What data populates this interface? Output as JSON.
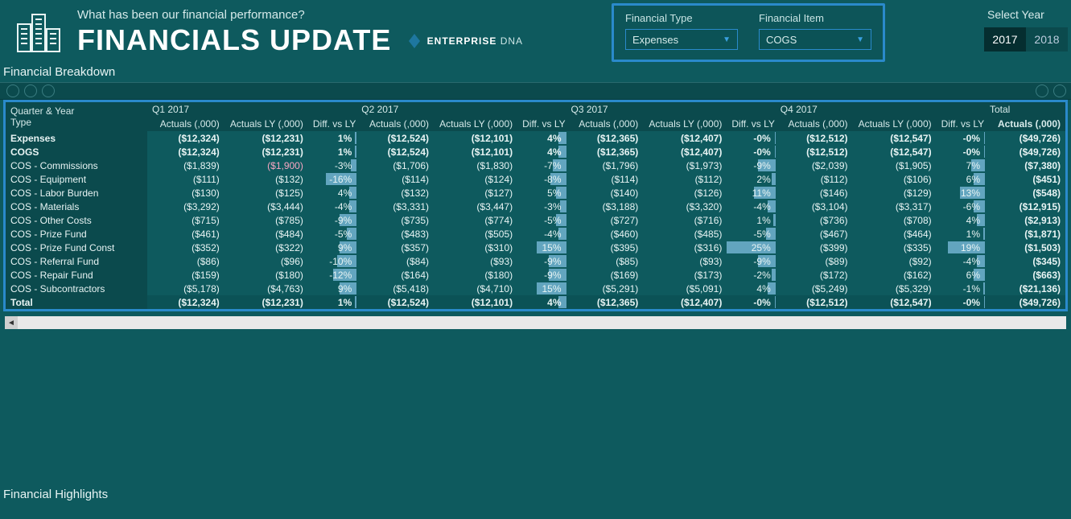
{
  "header": {
    "subtitle": "What has been our financial performance?",
    "title": "FINANCIALS UPDATE",
    "brand_prefix": "ENTERPRISE",
    "brand_suffix": " DNA"
  },
  "slicers": {
    "type_label": "Financial Type",
    "type_value": "Expenses",
    "item_label": "Financial Item",
    "item_value": "COGS"
  },
  "year": {
    "label": "Select Year",
    "y2017": "2017",
    "y2018": "2018",
    "selected": "2017"
  },
  "section_breakdown": "Financial Breakdown",
  "section_highlights": "Financial Highlights",
  "row_header_title1": "Quarter & Year",
  "row_header_title2": "Type",
  "quarters": {
    "q1": "Q1 2017",
    "q2": "Q2 2017",
    "q3": "Q3 2017",
    "q4": "Q4 2017",
    "tot": "Total"
  },
  "col_labels": {
    "act": "Actuals (,000)",
    "ly": "Actuals LY (,000)",
    "diff": "Diff. vs LY"
  },
  "total_label": "Total",
  "diff_bar_color": "#7fbfe0",
  "diff_bar_max_pct": 25,
  "rows": [
    {
      "label": "Expenses",
      "indent": 0,
      "bold": true,
      "q1": {
        "a": "($12,324)",
        "l": "($12,231)",
        "d": "1%",
        "b": 4
      },
      "q2": {
        "a": "($12,524)",
        "l": "($12,101)",
        "d": "4%",
        "b": 16
      },
      "q3": {
        "a": "($12,365)",
        "l": "($12,407)",
        "d": "-0%",
        "b": 2
      },
      "q4": {
        "a": "($12,512)",
        "l": "($12,547)",
        "d": "-0%",
        "b": 2
      },
      "tot": "($49,726)"
    },
    {
      "label": "COGS",
      "indent": 1,
      "bold": true,
      "q1": {
        "a": "($12,324)",
        "l": "($12,231)",
        "d": "1%",
        "b": 4
      },
      "q2": {
        "a": "($12,524)",
        "l": "($12,101)",
        "d": "4%",
        "b": 16
      },
      "q3": {
        "a": "($12,365)",
        "l": "($12,407)",
        "d": "-0%",
        "b": 2
      },
      "q4": {
        "a": "($12,512)",
        "l": "($12,547)",
        "d": "-0%",
        "b": 2
      },
      "tot": "($49,726)"
    },
    {
      "label": "COS - Commissions",
      "indent": 2,
      "q1": {
        "a": "($1,839)",
        "l": "($1,900)",
        "d": "-3%",
        "b": 12,
        "hl": true
      },
      "q2": {
        "a": "($1,706)",
        "l": "($1,830)",
        "d": "-7%",
        "b": 28
      },
      "q3": {
        "a": "($1,796)",
        "l": "($1,973)",
        "d": "-9%",
        "b": 36
      },
      "q4": {
        "a": "($2,039)",
        "l": "($1,905)",
        "d": "7%",
        "b": 28
      },
      "tot": "($7,380)"
    },
    {
      "label": "COS - Equipment",
      "indent": 2,
      "q1": {
        "a": "($111)",
        "l": "($132)",
        "d": "-16%",
        "b": 64
      },
      "q2": {
        "a": "($114)",
        "l": "($124)",
        "d": "-8%",
        "b": 32
      },
      "q3": {
        "a": "($114)",
        "l": "($112)",
        "d": "2%",
        "b": 8
      },
      "q4": {
        "a": "($112)",
        "l": "($106)",
        "d": "6%",
        "b": 24
      },
      "tot": "($451)"
    },
    {
      "label": "COS - Labor Burden",
      "indent": 2,
      "q1": {
        "a": "($130)",
        "l": "($125)",
        "d": "4%",
        "b": 16
      },
      "q2": {
        "a": "($132)",
        "l": "($127)",
        "d": "5%",
        "b": 20
      },
      "q3": {
        "a": "($140)",
        "l": "($126)",
        "d": "11%",
        "b": 44
      },
      "q4": {
        "a": "($146)",
        "l": "($129)",
        "d": "13%",
        "b": 52
      },
      "tot": "($548)"
    },
    {
      "label": "COS - Materials",
      "indent": 2,
      "q1": {
        "a": "($3,292)",
        "l": "($3,444)",
        "d": "-4%",
        "b": 16
      },
      "q2": {
        "a": "($3,331)",
        "l": "($3,447)",
        "d": "-3%",
        "b": 12
      },
      "q3": {
        "a": "($3,188)",
        "l": "($3,320)",
        "d": "-4%",
        "b": 16
      },
      "q4": {
        "a": "($3,104)",
        "l": "($3,317)",
        "d": "-6%",
        "b": 24
      },
      "tot": "($12,915)"
    },
    {
      "label": "COS - Other Costs",
      "indent": 2,
      "q1": {
        "a": "($715)",
        "l": "($785)",
        "d": "-9%",
        "b": 36
      },
      "q2": {
        "a": "($735)",
        "l": "($774)",
        "d": "-5%",
        "b": 20
      },
      "q3": {
        "a": "($727)",
        "l": "($716)",
        "d": "1%",
        "b": 4
      },
      "q4": {
        "a": "($736)",
        "l": "($708)",
        "d": "4%",
        "b": 16
      },
      "tot": "($2,913)"
    },
    {
      "label": "COS - Prize Fund",
      "indent": 2,
      "q1": {
        "a": "($461)",
        "l": "($484)",
        "d": "-5%",
        "b": 20
      },
      "q2": {
        "a": "($483)",
        "l": "($505)",
        "d": "-4%",
        "b": 16
      },
      "q3": {
        "a": "($460)",
        "l": "($485)",
        "d": "-5%",
        "b": 20
      },
      "q4": {
        "a": "($467)",
        "l": "($464)",
        "d": "1%",
        "b": 4
      },
      "tot": "($1,871)"
    },
    {
      "label": "COS - Prize Fund Const",
      "indent": 2,
      "q1": {
        "a": "($352)",
        "l": "($322)",
        "d": "9%",
        "b": 36
      },
      "q2": {
        "a": "($357)",
        "l": "($310)",
        "d": "15%",
        "b": 60
      },
      "q3": {
        "a": "($395)",
        "l": "($316)",
        "d": "25%",
        "b": 100
      },
      "q4": {
        "a": "($399)",
        "l": "($335)",
        "d": "19%",
        "b": 76
      },
      "tot": "($1,503)"
    },
    {
      "label": "COS - Referral Fund",
      "indent": 2,
      "q1": {
        "a": "($86)",
        "l": "($96)",
        "d": "-10%",
        "b": 40
      },
      "q2": {
        "a": "($84)",
        "l": "($93)",
        "d": "-9%",
        "b": 36
      },
      "q3": {
        "a": "($85)",
        "l": "($93)",
        "d": "-9%",
        "b": 36
      },
      "q4": {
        "a": "($89)",
        "l": "($92)",
        "d": "-4%",
        "b": 16
      },
      "tot": "($345)"
    },
    {
      "label": "COS - Repair Fund",
      "indent": 2,
      "q1": {
        "a": "($159)",
        "l": "($180)",
        "d": "-12%",
        "b": 48
      },
      "q2": {
        "a": "($164)",
        "l": "($180)",
        "d": "-9%",
        "b": 36
      },
      "q3": {
        "a": "($169)",
        "l": "($173)",
        "d": "-2%",
        "b": 8
      },
      "q4": {
        "a": "($172)",
        "l": "($162)",
        "d": "6%",
        "b": 24
      },
      "tot": "($663)"
    },
    {
      "label": "COS - Subcontractors",
      "indent": 2,
      "q1": {
        "a": "($5,178)",
        "l": "($4,763)",
        "d": "9%",
        "b": 36
      },
      "q2": {
        "a": "($5,418)",
        "l": "($4,710)",
        "d": "15%",
        "b": 60
      },
      "q3": {
        "a": "($5,291)",
        "l": "($5,091)",
        "d": "4%",
        "b": 16
      },
      "q4": {
        "a": "($5,249)",
        "l": "($5,329)",
        "d": "-1%",
        "b": 4
      },
      "tot": "($21,136)"
    },
    {
      "label": "Total",
      "indent": 0,
      "bold": true,
      "total": true,
      "q1": {
        "a": "($12,324)",
        "l": "($12,231)",
        "d": "1%",
        "b": 4
      },
      "q2": {
        "a": "($12,524)",
        "l": "($12,101)",
        "d": "4%",
        "b": 16
      },
      "q3": {
        "a": "($12,365)",
        "l": "($12,407)",
        "d": "-0%",
        "b": 2
      },
      "q4": {
        "a": "($12,512)",
        "l": "($12,547)",
        "d": "-0%",
        "b": 2
      },
      "tot": "($49,726)"
    }
  ]
}
